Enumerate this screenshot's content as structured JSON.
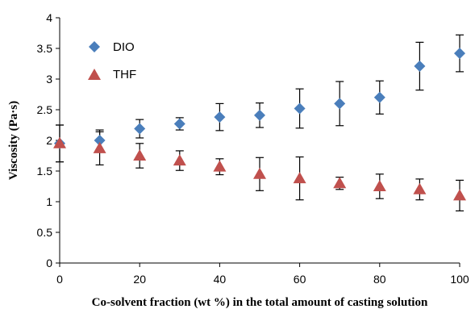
{
  "chart_data": {
    "type": "scatter",
    "title": "",
    "xlabel": "Co-solvent fraction (wt %) in the total amount of casting solution",
    "ylabel": "Viscosity (Pa·s)",
    "xlim": [
      0,
      100
    ],
    "ylim": [
      0,
      4
    ],
    "x_ticks": [
      "0",
      "20",
      "40",
      "60",
      "80",
      "100"
    ],
    "y_ticks": [
      "0",
      "0.5",
      "1",
      "1.5",
      "2",
      "2.5",
      "3",
      "3.5",
      "4"
    ],
    "grid": false,
    "legend_position": "top-left",
    "series": [
      {
        "name": "DIO",
        "marker": "diamond",
        "color": "#4a7ebb",
        "x": [
          0,
          10,
          20,
          30,
          40,
          50,
          60,
          70,
          80,
          90,
          100
        ],
        "y": [
          1.95,
          2.0,
          2.19,
          2.27,
          2.38,
          2.41,
          2.52,
          2.6,
          2.7,
          3.21,
          3.42
        ],
        "error": [
          0.3,
          0.17,
          0.15,
          0.1,
          0.22,
          0.2,
          0.32,
          0.36,
          0.27,
          0.39,
          0.3
        ]
      },
      {
        "name": "THF",
        "marker": "triangle",
        "color": "#c0504d",
        "x": [
          0,
          10,
          20,
          30,
          40,
          50,
          60,
          70,
          80,
          90,
          100
        ],
        "y": [
          1.95,
          1.87,
          1.75,
          1.67,
          1.57,
          1.45,
          1.38,
          1.3,
          1.25,
          1.2,
          1.1
        ],
        "error": [
          0.3,
          0.27,
          0.2,
          0.16,
          0.13,
          0.27,
          0.35,
          0.1,
          0.2,
          0.17,
          0.25
        ]
      }
    ]
  }
}
